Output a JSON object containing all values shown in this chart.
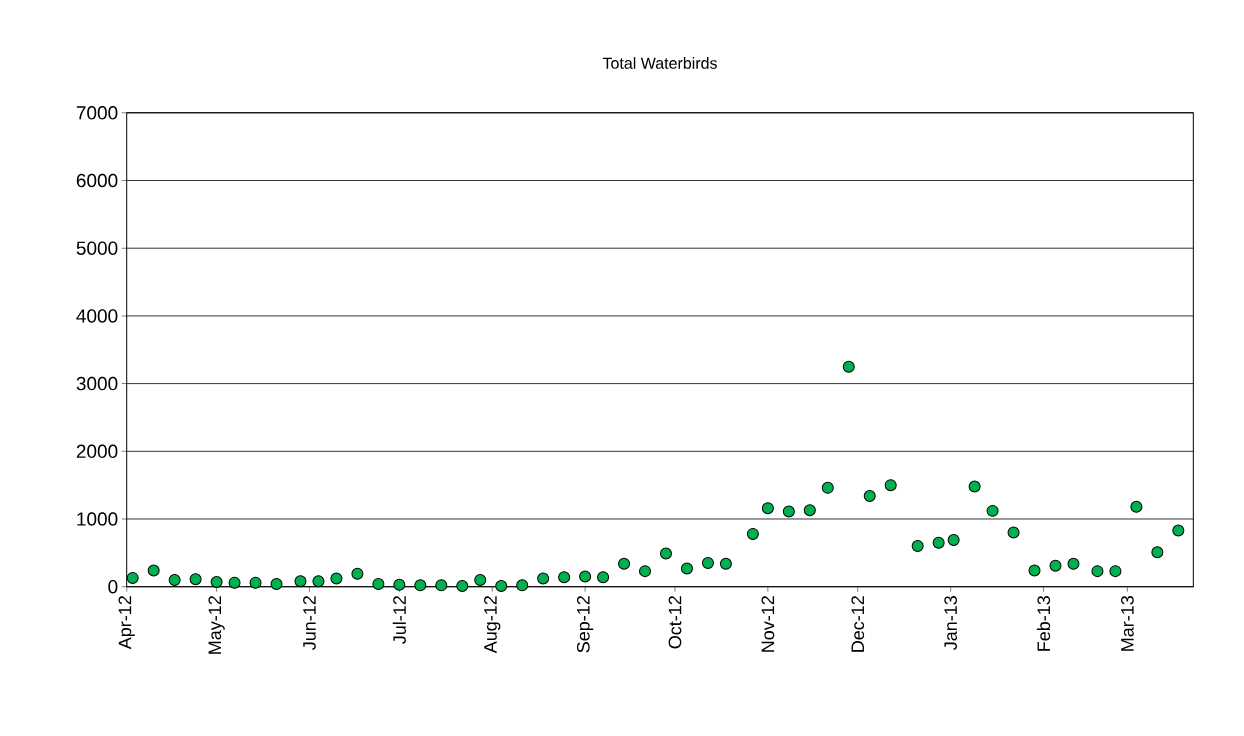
{
  "chart_data": {
    "type": "scatter",
    "title": "Total Waterbirds",
    "x": [
      "2012-04-03",
      "2012-04-10",
      "2012-04-17",
      "2012-04-24",
      "2012-05-01",
      "2012-05-07",
      "2012-05-14",
      "2012-05-21",
      "2012-05-29",
      "2012-06-04",
      "2012-06-10",
      "2012-06-17",
      "2012-06-24",
      "2012-07-01",
      "2012-07-08",
      "2012-07-15",
      "2012-07-22",
      "2012-07-28",
      "2012-08-04",
      "2012-08-11",
      "2012-08-18",
      "2012-08-25",
      "2012-09-01",
      "2012-09-07",
      "2012-09-14",
      "2012-09-21",
      "2012-09-28",
      "2012-10-05",
      "2012-10-12",
      "2012-10-18",
      "2012-10-27",
      "2012-11-01",
      "2012-11-08",
      "2012-11-15",
      "2012-11-21",
      "2012-11-28",
      "2012-12-05",
      "2012-12-12",
      "2012-12-21",
      "2012-12-28",
      "2013-01-02",
      "2013-01-09",
      "2013-01-15",
      "2013-01-22",
      "2013-01-29",
      "2013-02-05",
      "2013-02-11",
      "2013-02-19",
      "2013-02-25",
      "2013-03-04",
      "2013-03-11",
      "2013-03-18"
    ],
    "values": [
      130,
      240,
      100,
      110,
      70,
      60,
      60,
      40,
      80,
      80,
      120,
      190,
      40,
      30,
      20,
      20,
      10,
      100,
      10,
      20,
      120,
      140,
      150,
      140,
      340,
      230,
      490,
      270,
      350,
      340,
      780,
      1160,
      1110,
      1130,
      1460,
      3250,
      1340,
      1500,
      600,
      650,
      690,
      1480,
      1120,
      800,
      240,
      310,
      340,
      230,
      230,
      1180,
      510,
      830
    ],
    "color": "#00b050",
    "marker": "circle",
    "grid": "y",
    "xlim": [
      "2012-04-01",
      "2013-03-23"
    ],
    "xticks": [
      {
        "value": "2012-04-01",
        "label": "Apr-12"
      },
      {
        "value": "2012-05-01",
        "label": "May-12"
      },
      {
        "value": "2012-06-01",
        "label": "Jun-12"
      },
      {
        "value": "2012-07-01",
        "label": "Jul-12"
      },
      {
        "value": "2012-08-01",
        "label": "Aug-12"
      },
      {
        "value": "2012-09-01",
        "label": "Sep-12"
      },
      {
        "value": "2012-10-01",
        "label": "Oct-12"
      },
      {
        "value": "2012-11-01",
        "label": "Nov-12"
      },
      {
        "value": "2012-12-01",
        "label": "Dec-12"
      },
      {
        "value": "2013-01-01",
        "label": "Jan-13"
      },
      {
        "value": "2013-02-01",
        "label": "Feb-13"
      },
      {
        "value": "2013-03-01",
        "label": "Mar-13"
      }
    ],
    "ylim": [
      0,
      7000
    ],
    "yticks": [
      0,
      1000,
      2000,
      3000,
      4000,
      5000,
      6000,
      7000
    ]
  }
}
